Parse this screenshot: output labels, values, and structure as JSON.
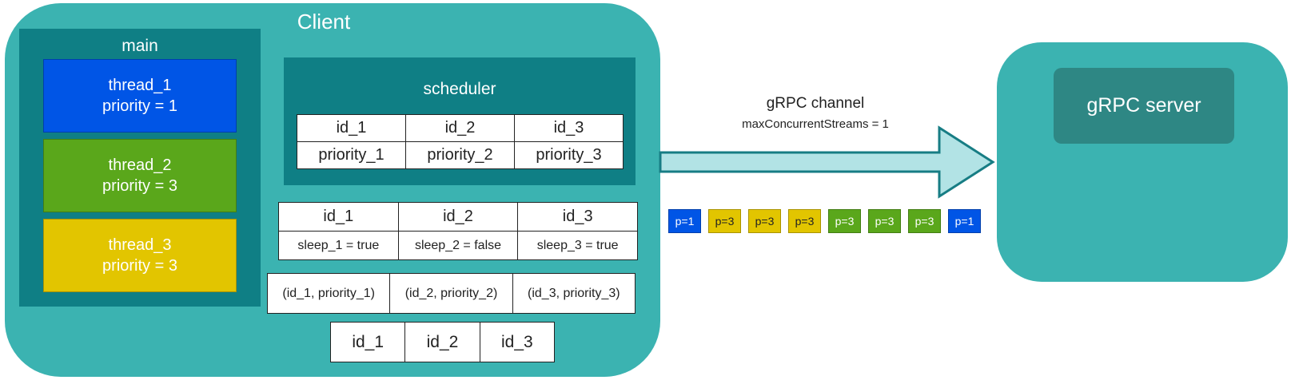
{
  "client": {
    "title": "Client"
  },
  "main": {
    "title": "main",
    "threads": [
      {
        "name": "thread_1",
        "priority": "priority = 1",
        "color": "#0055e6"
      },
      {
        "name": "thread_2",
        "priority": "priority = 3",
        "color": "#5aa71b"
      },
      {
        "name": "thread_3",
        "priority": "priority = 3",
        "color": "#e2c500"
      }
    ]
  },
  "scheduler": {
    "title": "scheduler",
    "ids": [
      "id_1",
      "id_2",
      "id_3"
    ],
    "priorities": [
      "priority_1",
      "priority_2",
      "priority_3"
    ]
  },
  "sleep_table": {
    "ids": [
      "id_1",
      "id_2",
      "id_3"
    ],
    "sleeps": [
      "sleep_1 = true",
      "sleep_2 = false",
      "sleep_3 = true"
    ]
  },
  "pairs_table": [
    "(id_1, priority_1)",
    "(id_2, priority_2)",
    "(id_3, priority_3)"
  ],
  "ids_table": [
    "id_1",
    "id_2",
    "id_3"
  ],
  "channel": {
    "title": "gRPC channel",
    "subtitle": "maxConcurrentStreams = 1"
  },
  "packets": [
    {
      "label": "p=1",
      "color": "#0055e6",
      "text_color": "#ffffff"
    },
    {
      "label": "p=3",
      "color": "#e2c500",
      "text_color": "#222222"
    },
    {
      "label": "p=3",
      "color": "#e2c500",
      "text_color": "#222222"
    },
    {
      "label": "p=3",
      "color": "#e2c500",
      "text_color": "#222222"
    },
    {
      "label": "p=3",
      "color": "#5aa71b",
      "text_color": "#ffffff"
    },
    {
      "label": "p=3",
      "color": "#5aa71b",
      "text_color": "#ffffff"
    },
    {
      "label": "p=3",
      "color": "#5aa71b",
      "text_color": "#ffffff"
    },
    {
      "label": "p=1",
      "color": "#0055e6",
      "text_color": "#ffffff"
    }
  ],
  "server": {
    "label": "gRPC server"
  },
  "colors": {
    "teal": "#3bb3b1",
    "dark_teal": "#0f7f85",
    "server_label": "#2e8784",
    "arrow_fill": "#b2e3e5"
  }
}
